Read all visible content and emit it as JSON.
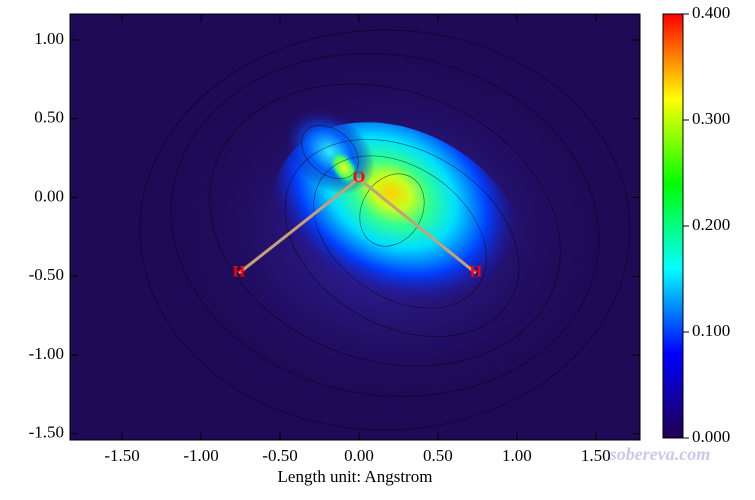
{
  "chart_data": {
    "type": "contour",
    "xlabel": "Length unit: Angstrom",
    "xlim": [
      -1.83,
      1.78
    ],
    "ylim": [
      -1.54,
      1.165
    ],
    "xticks": [
      {
        "value": -1.5,
        "label": "-1.50"
      },
      {
        "value": -1,
        "label": "-1.00"
      },
      {
        "value": -0.5,
        "label": "-0.50"
      },
      {
        "value": 0,
        "label": "0.00"
      },
      {
        "value": 0.5,
        "label": "0.50"
      },
      {
        "value": 1,
        "label": "1.00"
      },
      {
        "value": 1.5,
        "label": "1.50"
      }
    ],
    "yticks": [
      {
        "value": 1,
        "label": "1.00"
      },
      {
        "value": 0.5,
        "label": "0.50"
      },
      {
        "value": 0,
        "label": "0.00"
      },
      {
        "value": -0.5,
        "label": "-0.50"
      },
      {
        "value": -1,
        "label": "-1.00"
      },
      {
        "value": -1.5,
        "label": "-1.50"
      }
    ],
    "colorbar": {
      "lim": [
        0,
        0.4
      ],
      "ticks": [
        {
          "value": 0,
          "label": "0.000"
        },
        {
          "value": 0.1,
          "label": "0.100"
        },
        {
          "value": 0.2,
          "label": "0.200"
        },
        {
          "value": 0.3,
          "label": "0.300"
        },
        {
          "value": 0.4,
          "label": "0.400"
        }
      ],
      "colors": [
        "#200050",
        "#0000ff",
        "#00ffff",
        "#00ff00",
        "#ffff00",
        "#ff0000"
      ]
    },
    "atoms": [
      {
        "label": "O",
        "x": 0.0,
        "y": 0.12
      },
      {
        "label": "H",
        "x": -0.76,
        "y": -0.48
      },
      {
        "label": "H",
        "x": 0.74,
        "y": -0.48
      }
    ],
    "bonds": [
      [
        0,
        1
      ],
      [
        0,
        2
      ]
    ],
    "bond_color": "#c8a078",
    "atom_color": "#ff0000",
    "watermark": "sobereva.com"
  }
}
